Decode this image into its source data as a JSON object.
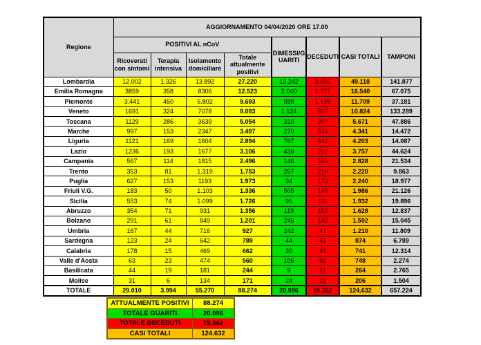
{
  "colors": {
    "yellow": "#ffff00",
    "green": "#00e000",
    "red": "#ff0000",
    "orange": "#ffc000",
    "header_gray": "#d9d9d9",
    "summary_border": "#7f6000"
  },
  "chart_data": {
    "type": "table",
    "title": "AGGIORNAMENTO 04/04/2020 ORE 17.00",
    "row_header": "Regione",
    "group_header": "POSITIVI AL nCoV",
    "columns": [
      "Ricoverati con sintomi",
      "Terapia intensiva",
      "Isolamento domiciliare",
      "Totale attualmente positivi",
      "DIMESSI/GUARITI",
      "DECEDUTI",
      "CASI TOTALI",
      "TAMPONI"
    ],
    "column_keys": [
      "ricoverati-con-sintomi",
      "terapia-intensiva",
      "isolamento-domiciliare",
      "totale-attualmente-positivi",
      "dimessi-guariti",
      "deceduti",
      "casi-totali",
      "tamponi"
    ],
    "rows": [
      {
        "regione": "Lombardia",
        "values": [
          "12.002",
          "1.326",
          "13.892",
          "27.220",
          "13.242",
          "8.656",
          "49.118",
          "141.877"
        ]
      },
      {
        "regione": "Emilia Romagna",
        "values": [
          "3859",
          "358",
          "8306",
          "12.523",
          "2.040",
          "1.977",
          "16.540",
          "67.075"
        ]
      },
      {
        "regione": "Piemonte",
        "values": [
          "3.441",
          "450",
          "5.802",
          "9.693",
          "888",
          "1.128",
          "11.709",
          "37.181"
        ]
      },
      {
        "regione": "Veneto",
        "values": [
          "1691",
          "324",
          "7078",
          "9.093",
          "1.124",
          "607",
          "10.824",
          "133.289"
        ]
      },
      {
        "regione": "Toscana",
        "values": [
          "1129",
          "286",
          "3639",
          "5.054",
          "310",
          "307",
          "5.671",
          "47.886"
        ]
      },
      {
        "regione": "Marche",
        "values": [
          "997",
          "153",
          "2347",
          "3.497",
          "270",
          "574",
          "4.341",
          "14.472"
        ]
      },
      {
        "regione": "Liguria",
        "values": [
          "1121",
          "169",
          "1604",
          "2.894",
          "767",
          "542",
          "4.203",
          "14.087"
        ]
      },
      {
        "regione": "Lazio",
        "values": [
          "1236",
          "193",
          "1677",
          "3.106",
          "439",
          "212",
          "3.757",
          "44.624"
        ]
      },
      {
        "regione": "Campania",
        "values": [
          "567",
          "114",
          "1815",
          "2.496",
          "146",
          "186",
          "2.828",
          "21.534"
        ]
      },
      {
        "regione": "Trento",
        "values": [
          "353",
          "81",
          "1.319",
          "1.753",
          "257",
          "210",
          "2.220",
          "9.863"
        ]
      },
      {
        "regione": "Puglia",
        "values": [
          "627",
          "153",
          "1193",
          "1.973",
          "94",
          "173",
          "2.240",
          "18.977"
        ]
      },
      {
        "regione": "Friuli V.G.",
        "values": [
          "183",
          "50",
          "1.103",
          "1.336",
          "505",
          "145",
          "1.986",
          "21.126"
        ]
      },
      {
        "regione": "Sicilia",
        "values": [
          "553",
          "74",
          "1.099",
          "1.726",
          "95",
          "111",
          "1.932",
          "19.896"
        ]
      },
      {
        "regione": "Abruzzo",
        "values": [
          "354",
          "71",
          "931",
          "1.356",
          "119",
          "153",
          "1.628",
          "12.837"
        ]
      },
      {
        "regione": "Bolzano",
        "values": [
          "291",
          "61",
          "849",
          "1.201",
          "245",
          "146",
          "1.592",
          "15.045"
        ]
      },
      {
        "regione": "Umbria",
        "values": [
          "167",
          "44",
          "716",
          "927",
          "242",
          "41",
          "1.210",
          "11.809"
        ]
      },
      {
        "regione": "Sardegna",
        "values": [
          "123",
          "24",
          "642",
          "789",
          "44",
          "41",
          "874",
          "6.789"
        ]
      },
      {
        "regione": "Calabria",
        "values": [
          "178",
          "15",
          "469",
          "662",
          "30",
          "49",
          "741",
          "12.314"
        ]
      },
      {
        "regione": "Valle d'Aosta",
        "values": [
          "63",
          "23",
          "474",
          "560",
          "106",
          "82",
          "748",
          "2.274"
        ]
      },
      {
        "regione": "Basilicata",
        "values": [
          "44",
          "19",
          "181",
          "244",
          "9",
          "11",
          "264",
          "2.765"
        ]
      },
      {
        "regione": "Molise",
        "values": [
          "31",
          "6",
          "134",
          "171",
          "24",
          "11",
          "206",
          "1.504"
        ]
      }
    ],
    "total_row": {
      "regione": "TOTALE",
      "values": [
        "29.010",
        "3.994",
        "55.270",
        "88.274",
        "20.996",
        "15.362",
        "124.632",
        "657.224"
      ]
    },
    "summary": [
      {
        "key": "attualmente-positivi",
        "label": "ATTUALMENTE POSITIVI",
        "value": "88.274",
        "color": "#ffff00"
      },
      {
        "key": "totale-guariti",
        "label": "TOTALE GUARITI",
        "value": "20.996",
        "color": "#00e000"
      },
      {
        "key": "totale-deceduti",
        "label": "TOTALE DECEDUTI",
        "value": "15.362",
        "color": "#ff0000"
      },
      {
        "key": "casi-totali",
        "label": "CASI TOTALI",
        "value": "124.632",
        "color": "#ffc000"
      }
    ]
  }
}
